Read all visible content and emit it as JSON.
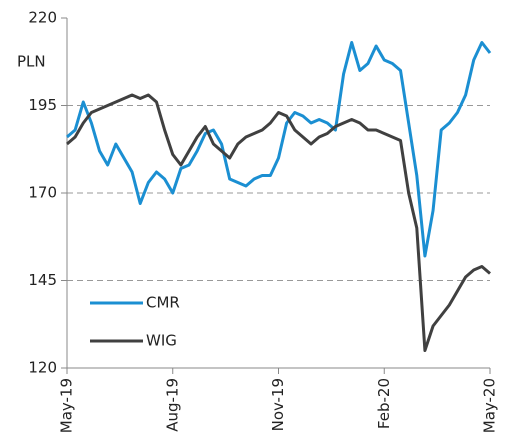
{
  "chart_data": {
    "type": "line",
    "y_label": "PLN",
    "categories": [
      "May-19",
      null,
      null,
      null,
      null,
      null,
      null,
      null,
      null,
      null,
      null,
      null,
      null,
      "Aug-19",
      null,
      null,
      null,
      null,
      null,
      null,
      null,
      null,
      null,
      null,
      null,
      null,
      "Nov-19",
      null,
      null,
      null,
      null,
      null,
      null,
      null,
      null,
      null,
      null,
      null,
      null,
      "Feb-20",
      null,
      null,
      null,
      null,
      null,
      null,
      null,
      null,
      null,
      null,
      null,
      null,
      "May-20"
    ],
    "series": [
      {
        "name": "CMR",
        "color": "#1b8fd2",
        "values": [
          186,
          188,
          196,
          190,
          182,
          178,
          184,
          180,
          176,
          167,
          173,
          176,
          174,
          170,
          177,
          178,
          182,
          187,
          188,
          184,
          174,
          173,
          172,
          174,
          175,
          175,
          180,
          190,
          193,
          192,
          190,
          191,
          190,
          188,
          204,
          213,
          205,
          207,
          212,
          208,
          207,
          205,
          190,
          175,
          152,
          165,
          188,
          190,
          193,
          198,
          208,
          213,
          210
        ]
      },
      {
        "name": "WIG",
        "color": "#404040",
        "values": [
          184,
          186,
          190,
          193,
          194,
          195,
          196,
          197,
          198,
          197,
          198,
          196,
          188,
          181,
          178,
          182,
          186,
          189,
          184,
          182,
          180,
          184,
          186,
          187,
          188,
          190,
          193,
          192,
          188,
          186,
          184,
          186,
          187,
          189,
          190,
          191,
          190,
          188,
          188,
          187,
          186,
          185,
          170,
          160,
          125,
          132,
          135,
          138,
          142,
          146,
          148,
          149,
          147
        ]
      }
    ],
    "ylim": [
      120,
      220
    ],
    "yticks": [
      120,
      145,
      170,
      195,
      220
    ],
    "grid": true,
    "legend": "lower left"
  }
}
